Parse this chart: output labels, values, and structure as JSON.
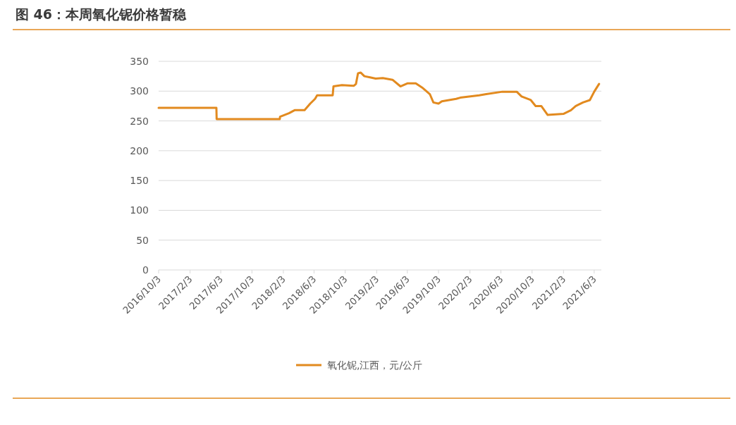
{
  "chart_data": {
    "type": "line",
    "title": "图 46：本周氧化铌价格暂稳",
    "x": [
      "2016-10-03",
      "2017-05-17",
      "2017-05-18",
      "2018-01-20",
      "2018-01-21",
      "2018-02-25",
      "2018-03-19",
      "2018-04-27",
      "2018-05-19",
      "2018-06-07",
      "2018-06-15",
      "2018-08-15",
      "2018-08-18",
      "2018-09-20",
      "2018-11-06",
      "2018-11-14",
      "2018-11-22",
      "2018-12-03",
      "2018-12-17",
      "2019-01-08",
      "2019-01-30",
      "2019-02-27",
      "2019-04-06",
      "2019-05-07",
      "2019-06-03",
      "2019-07-06",
      "2019-08-03",
      "2019-08-30",
      "2019-09-13",
      "2019-10-03",
      "2019-10-16",
      "2019-12-11",
      "2019-12-27",
      "2020-03-10",
      "2020-04-07",
      "2020-06-09",
      "2020-08-04",
      "2020-08-23",
      "2020-09-28",
      "2020-10-17",
      "2020-11-08",
      "2020-12-03",
      "2021-02-04",
      "2021-03-04",
      "2021-03-23",
      "2021-04-20",
      "2021-05-17",
      "2021-06-03",
      "2021-06-22"
    ],
    "series": [
      {
        "name": "氧化铌,江西，元/公斤",
        "color": "#e28a1f",
        "values": [
          272,
          272,
          253,
          253,
          257,
          263,
          268,
          268,
          279,
          287,
          293,
          293,
          308,
          310,
          309,
          312,
          330,
          331,
          325,
          323,
          321,
          322,
          319,
          308,
          313,
          313,
          305,
          295,
          281,
          279,
          283,
          287,
          289,
          293,
          295,
          299,
          299,
          291,
          285,
          275,
          275,
          260,
          262,
          268,
          275,
          281,
          285,
          299,
          312
        ]
      }
    ],
    "xlim": [
      "2016-10-03",
      "2021-07-01"
    ],
    "xticks": [
      {
        "value": "2016-10-03",
        "label": "2016/10/3"
      },
      {
        "value": "2017-02-03",
        "label": "2017/2/3"
      },
      {
        "value": "2017-06-03",
        "label": "2017/6/3"
      },
      {
        "value": "2017-10-03",
        "label": "2017/10/3"
      },
      {
        "value": "2018-02-03",
        "label": "2018/2/3"
      },
      {
        "value": "2018-06-03",
        "label": "2018/6/3"
      },
      {
        "value": "2018-10-03",
        "label": "2018/10/3"
      },
      {
        "value": "2019-02-03",
        "label": "2019/2/3"
      },
      {
        "value": "2019-06-03",
        "label": "2019/6/3"
      },
      {
        "value": "2019-10-03",
        "label": "2019/10/3"
      },
      {
        "value": "2020-02-03",
        "label": "2020/2/3"
      },
      {
        "value": "2020-06-03",
        "label": "2020/6/3"
      },
      {
        "value": "2020-10-03",
        "label": "2020/10/3"
      },
      {
        "value": "2021-02-03",
        "label": "2021/2/3"
      },
      {
        "value": "2021-06-03",
        "label": "2021/6/3"
      }
    ],
    "ylim": [
      0,
      350
    ],
    "yticks": [
      0,
      50,
      100,
      150,
      200,
      250,
      300,
      350
    ],
    "grid": "y",
    "legend": "bottom",
    "marker": "none",
    "line_style": "solid"
  }
}
